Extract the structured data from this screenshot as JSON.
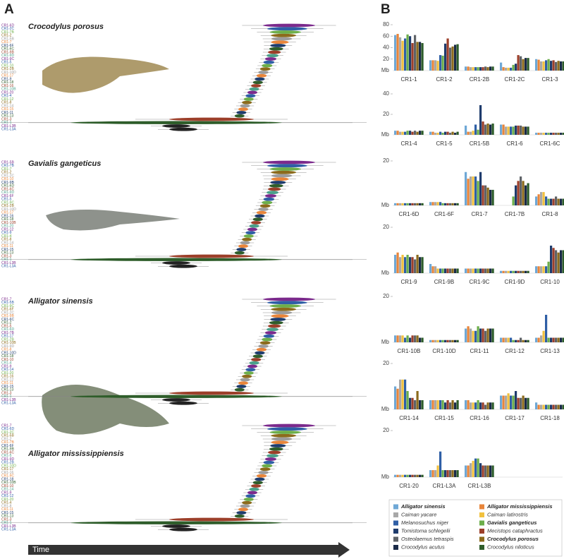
{
  "chart_data": [
    {
      "type": "timetree",
      "panel_label": "A",
      "axis_label": "Time",
      "trees": [
        {
          "species": "Crocodylus porosus",
          "labels": [
            "CR1-6D",
            "CR1-2C",
            "CR1-7B",
            "CR1-2",
            "CR1-5B",
            "CR1-7",
            "CR1-6F",
            "CR1-6C",
            "CR1-9B",
            "CR1-9D",
            "CR1-9C",
            "CR1-5",
            "CR1-10",
            "CR1-2B",
            "CR1-10D",
            "CR1-17",
            "CR1-9",
            "CR1-18",
            "CR1-16",
            "CR1-10B",
            "CR1-20",
            "CR1-4",
            "CR1-12",
            "CR1-8",
            "CR1-14",
            "CR1-15",
            "CR1-11",
            "CR1-13",
            "CR1-3",
            "CR1-1",
            "CR1-L3B",
            "CR1-L3A"
          ]
        },
        {
          "species": "Gavialis gangeticus",
          "labels": [
            "CR1-5B",
            "CR1-7B",
            "CR1-7",
            "CR1-2",
            "CR1-2C",
            "CR1-10",
            "CR1-9B",
            "CR1-6D",
            "CR1-6C",
            "CR1-9D",
            "CR1-6F",
            "CR1-5",
            "CR1-9C",
            "CR1-2B",
            "CR1-10D",
            "CR1-17",
            "CR1-16",
            "CR1-18",
            "CR1-10B",
            "CR1-20",
            "CR1-12",
            "CR1-9",
            "CR1-4",
            "CR1-8",
            "CR1-14",
            "CR1-11",
            "CR1-15",
            "CR1-13",
            "CR1-3",
            "CR1-1",
            "CR1-L3B",
            "CR1-L3A"
          ]
        },
        {
          "species": "Alligator sinensis",
          "labels": [
            "CR1-7",
            "CR1-5B",
            "CR1-9C",
            "CR1-6F",
            "CR1-2C",
            "CR1-9B",
            "CR1-6C",
            "CR1-2",
            "CR1-5",
            "CR1-6D",
            "CR1-7B",
            "CR1-17",
            "CR1-2B",
            "CR1-10B",
            "CR1-9D",
            "CR1-8",
            "CR1-10D",
            "CR1-18",
            "CR1-10",
            "CR1-4",
            "CR1-9",
            "CR1-14",
            "CR1-20",
            "CR1-16",
            "CR1-12",
            "CR1-11",
            "CR1-15",
            "CR1-13",
            "CR1-3",
            "CR1-1",
            "CR1-L3B",
            "CR1-L3A"
          ]
        },
        {
          "species": "Alligator mississippiensis",
          "labels": [
            "CR1-7",
            "CR1-6D",
            "CR1-2C",
            "CR1-5B",
            "CR1-2",
            "CR1-7B",
            "CR1-6F",
            "CR1-9B",
            "CR1-6C",
            "CR1-5",
            "CR1-9D",
            "CR1-2B",
            "CR1-10D",
            "CR1-17",
            "CR1-16",
            "CR1-9C",
            "CR1-18",
            "CR1-10B",
            "CR1-10",
            "CR1-14",
            "CR1-9",
            "CR1-12",
            "CR1-20",
            "CR1-4",
            "CR1-8",
            "CR1-11",
            "CR1-15",
            "CR1-13",
            "CR1-3",
            "CR1-1",
            "CR1-L3B",
            "CR1-L3A"
          ]
        }
      ]
    },
    {
      "type": "bar",
      "panel_label": "B",
      "species": [
        {
          "name": "Alligator sinensis",
          "color": "#6fa8d6",
          "bold": true
        },
        {
          "name": "Alligator mississippiensis",
          "color": "#e8853a",
          "bold": true
        },
        {
          "name": "Caiman yacare",
          "color": "#a8a8a8",
          "bold": false
        },
        {
          "name": "Caiman latirostris",
          "color": "#f2c13e",
          "bold": false
        },
        {
          "name": "Melanosuchus niger",
          "color": "#2f5fa6",
          "bold": false
        },
        {
          "name": "Gavialis gangeticus",
          "color": "#6cae4a",
          "bold": true
        },
        {
          "name": "Tomistoma schlegelii",
          "color": "#1f3c6d",
          "bold": false
        },
        {
          "name": "Mecistops cataphractus",
          "color": "#9c3f2a",
          "bold": false
        },
        {
          "name": "Osteolaemus tetraspis",
          "color": "#5f6368",
          "bold": false
        },
        {
          "name": "Crocodylus porosus",
          "color": "#8c6b1c",
          "bold": true
        },
        {
          "name": "Crocodylus acutus",
          "color": "#1a2a48",
          "bold": false
        },
        {
          "name": "Crocodylus niloticus",
          "color": "#2e5d2a",
          "bold": false
        }
      ],
      "panels": [
        {
          "categories": [
            "CR1-1",
            "CR1-2",
            "CR1-2B",
            "CR1-2C",
            "CR1-3"
          ],
          "ylabel": "Mb",
          "ylim": [
            0,
            80
          ],
          "yticks": [
            20,
            40,
            60,
            80
          ],
          "values": [
            [
              62,
              18,
              7,
              14,
              20
            ],
            [
              64,
              18,
              7,
              6,
              19
            ],
            [
              58,
              18,
              6,
              5,
              16
            ],
            [
              52,
              17,
              6,
              5,
              16
            ],
            [
              56,
              27,
              6,
              5,
              18
            ],
            [
              63,
              26,
              6,
              10,
              20
            ],
            [
              60,
              47,
              6,
              12,
              17
            ],
            [
              48,
              56,
              6,
              27,
              18
            ],
            [
              62,
              40,
              7,
              25,
              15
            ],
            [
              50,
              42,
              6,
              20,
              17
            ],
            [
              50,
              45,
              7,
              22,
              16
            ],
            [
              48,
              46,
              7,
              22,
              16
            ]
          ]
        },
        {
          "categories": [
            "CR1-4",
            "CR1-5",
            "CR1-5B",
            "CR1-6",
            "CR1-6C"
          ],
          "ylabel": "Mb",
          "ylim": [
            0,
            40
          ],
          "yticks": [
            20,
            40
          ],
          "values": [
            [
              4,
              3,
              9,
              10,
              2
            ],
            [
              4,
              3,
              3,
              10,
              2
            ],
            [
              3,
              2,
              3,
              8,
              2
            ],
            [
              3,
              2,
              4,
              8,
              2
            ],
            [
              3,
              3,
              10,
              8,
              2
            ],
            [
              4,
              2,
              5,
              8,
              2
            ],
            [
              4,
              3,
              29,
              9,
              2
            ],
            [
              3,
              3,
              13,
              9,
              2
            ],
            [
              4,
              2,
              10,
              9,
              2
            ],
            [
              3,
              3,
              11,
              8,
              2
            ],
            [
              4,
              2,
              10,
              8,
              2
            ],
            [
              4,
              3,
              11,
              8,
              2
            ]
          ]
        },
        {
          "categories": [
            "CR1-6D",
            "CR1-6F",
            "CR1-7",
            "CR1-7B",
            "CR1-8"
          ],
          "ylabel": "Mb",
          "ylim": [
            0,
            20
          ],
          "yticks": [
            20
          ],
          "values": [
            [
              1,
              1.5,
              15,
              0,
              4
            ],
            [
              1,
              1.5,
              12,
              0,
              5
            ],
            [
              1,
              1.5,
              13,
              0,
              6
            ],
            [
              1,
              1.5,
              13,
              0,
              6
            ],
            [
              1,
              1.5,
              13,
              0,
              4
            ],
            [
              1,
              1,
              11,
              4,
              3
            ],
            [
              1,
              1,
              15,
              9,
              3
            ],
            [
              1,
              1,
              9,
              11,
              3
            ],
            [
              1,
              1,
              9,
              13,
              4
            ],
            [
              1,
              1,
              8,
              11,
              3
            ],
            [
              1,
              1,
              7,
              9,
              3
            ],
            [
              1,
              1,
              7,
              10,
              3
            ]
          ]
        },
        {
          "categories": [
            "CR1-9",
            "CR1-9B",
            "CR1-9C",
            "CR1-9D",
            "CR1-10"
          ],
          "ylabel": "Mb",
          "ylim": [
            0,
            20
          ],
          "yticks": [
            20
          ],
          "values": [
            [
              8,
              4,
              2,
              1,
              3
            ],
            [
              9,
              3,
              2,
              1,
              3
            ],
            [
              7,
              3,
              2,
              1,
              3
            ],
            [
              8,
              2,
              2,
              1,
              3
            ],
            [
              7,
              2,
              2,
              1,
              3
            ],
            [
              8,
              2,
              2,
              1,
              5
            ],
            [
              7,
              2,
              2,
              1,
              12
            ],
            [
              7,
              2,
              2,
              1,
              11
            ],
            [
              6,
              2,
              2,
              1,
              10
            ],
            [
              8,
              2,
              2,
              1,
              9
            ],
            [
              7,
              2,
              2,
              1,
              10
            ],
            [
              7,
              2,
              2,
              1,
              10
            ]
          ]
        },
        {
          "categories": [
            "CR1-10B",
            "CR1-10D",
            "CR1-11",
            "CR1-12",
            "CR1-13"
          ],
          "ylabel": "Mb",
          "ylim": [
            0,
            20
          ],
          "yticks": [
            20
          ],
          "values": [
            [
              3,
              1,
              6,
              2,
              2
            ],
            [
              3,
              1,
              7,
              2,
              2
            ],
            [
              3,
              1,
              6,
              2,
              3
            ],
            [
              3,
              1,
              5,
              2,
              5
            ],
            [
              2,
              1,
              5,
              2,
              12
            ],
            [
              3,
              1,
              7,
              1,
              2
            ],
            [
              2,
              1,
              6,
              1,
              2
            ],
            [
              3,
              1,
              6,
              1,
              2
            ],
            [
              3,
              1,
              5,
              2,
              2
            ],
            [
              3,
              1,
              6,
              1,
              2
            ],
            [
              2,
              1,
              6,
              1,
              2
            ],
            [
              2,
              1,
              6,
              1,
              2
            ]
          ]
        },
        {
          "categories": [
            "CR1-14",
            "CR1-15",
            "CR1-16",
            "CR1-17",
            "CR1-18"
          ],
          "ylabel": "Mb",
          "ylim": [
            0,
            20
          ],
          "yticks": [
            20
          ],
          "values": [
            [
              10,
              4,
              4,
              6,
              3
            ],
            [
              9,
              4,
              4,
              6,
              2
            ],
            [
              13,
              4,
              3,
              6,
              2
            ],
            [
              13,
              4,
              3,
              7,
              2
            ],
            [
              13,
              4,
              3,
              6,
              2
            ],
            [
              8,
              4,
              4,
              6,
              2
            ],
            [
              5,
              3,
              3,
              8,
              2
            ],
            [
              5,
              4,
              3,
              5,
              2
            ],
            [
              4,
              3,
              2,
              5,
              2
            ],
            [
              8,
              4,
              3,
              6,
              2
            ],
            [
              4,
              3,
              3,
              5,
              2
            ],
            [
              4,
              4,
              3,
              5,
              2
            ]
          ]
        },
        {
          "categories": [
            "CR1-20",
            "CR1-L3A",
            "CR1-L3B"
          ],
          "ylabel": "Mb",
          "ylim": [
            0,
            20
          ],
          "yticks": [
            20
          ],
          "values": [
            [
              1,
              3,
              5
            ],
            [
              1,
              3,
              5
            ],
            [
              1,
              3,
              6
            ],
            [
              1,
              5,
              7
            ],
            [
              1,
              11,
              8
            ],
            [
              1,
              3,
              8
            ],
            [
              1,
              3,
              6
            ],
            [
              1,
              3,
              5
            ],
            [
              1,
              3,
              5
            ],
            [
              1,
              3,
              5
            ],
            [
              1,
              3,
              5
            ],
            [
              1,
              3,
              5
            ]
          ]
        }
      ]
    }
  ]
}
